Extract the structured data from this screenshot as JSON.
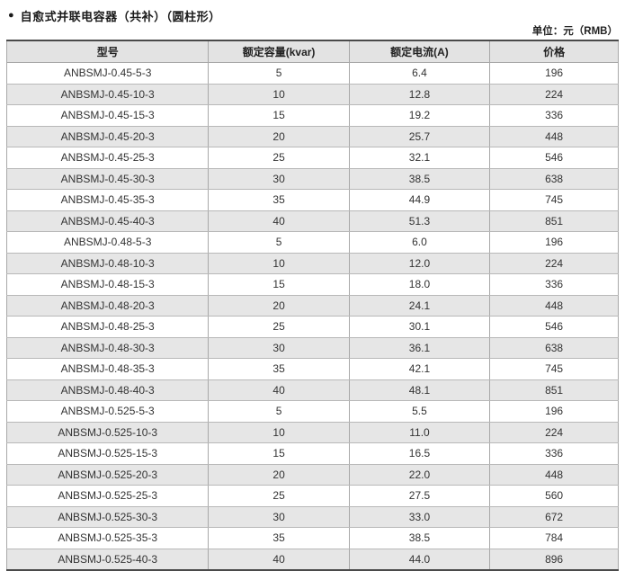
{
  "title": {
    "bullet_icon": "●",
    "text": "自愈式并联电容器（共补）（圆柱形）"
  },
  "unit_note": "单位：元（RMB）",
  "table": {
    "headers": [
      "型号",
      "额定容量(kvar)",
      "额定电流(A)",
      "价格"
    ],
    "rows": [
      [
        "ANBSMJ-0.45-5-3",
        "5",
        "6.4",
        "196"
      ],
      [
        "ANBSMJ-0.45-10-3",
        "10",
        "12.8",
        "224"
      ],
      [
        "ANBSMJ-0.45-15-3",
        "15",
        "19.2",
        "336"
      ],
      [
        "ANBSMJ-0.45-20-3",
        "20",
        "25.7",
        "448"
      ],
      [
        "ANBSMJ-0.45-25-3",
        "25",
        "32.1",
        "546"
      ],
      [
        "ANBSMJ-0.45-30-3",
        "30",
        "38.5",
        "638"
      ],
      [
        "ANBSMJ-0.45-35-3",
        "35",
        "44.9",
        "745"
      ],
      [
        "ANBSMJ-0.45-40-3",
        "40",
        "51.3",
        "851"
      ],
      [
        "ANBSMJ-0.48-5-3",
        "5",
        "6.0",
        "196"
      ],
      [
        "ANBSMJ-0.48-10-3",
        "10",
        "12.0",
        "224"
      ],
      [
        "ANBSMJ-0.48-15-3",
        "15",
        "18.0",
        "336"
      ],
      [
        "ANBSMJ-0.48-20-3",
        "20",
        "24.1",
        "448"
      ],
      [
        "ANBSMJ-0.48-25-3",
        "25",
        "30.1",
        "546"
      ],
      [
        "ANBSMJ-0.48-30-3",
        "30",
        "36.1",
        "638"
      ],
      [
        "ANBSMJ-0.48-35-3",
        "35",
        "42.1",
        "745"
      ],
      [
        "ANBSMJ-0.48-40-3",
        "40",
        "48.1",
        "851"
      ],
      [
        "ANBSMJ-0.525-5-3",
        "5",
        "5.5",
        "196"
      ],
      [
        "ANBSMJ-0.525-10-3",
        "10",
        "11.0",
        "224"
      ],
      [
        "ANBSMJ-0.525-15-3",
        "15",
        "16.5",
        "336"
      ],
      [
        "ANBSMJ-0.525-20-3",
        "20",
        "22.0",
        "448"
      ],
      [
        "ANBSMJ-0.525-25-3",
        "25",
        "27.5",
        "560"
      ],
      [
        "ANBSMJ-0.525-30-3",
        "30",
        "33.0",
        "672"
      ],
      [
        "ANBSMJ-0.525-35-3",
        "35",
        "38.5",
        "784"
      ],
      [
        "ANBSMJ-0.525-40-3",
        "40",
        "44.0",
        "896"
      ]
    ],
    "column_widths_pct": [
      33,
      23,
      23,
      21
    ]
  }
}
